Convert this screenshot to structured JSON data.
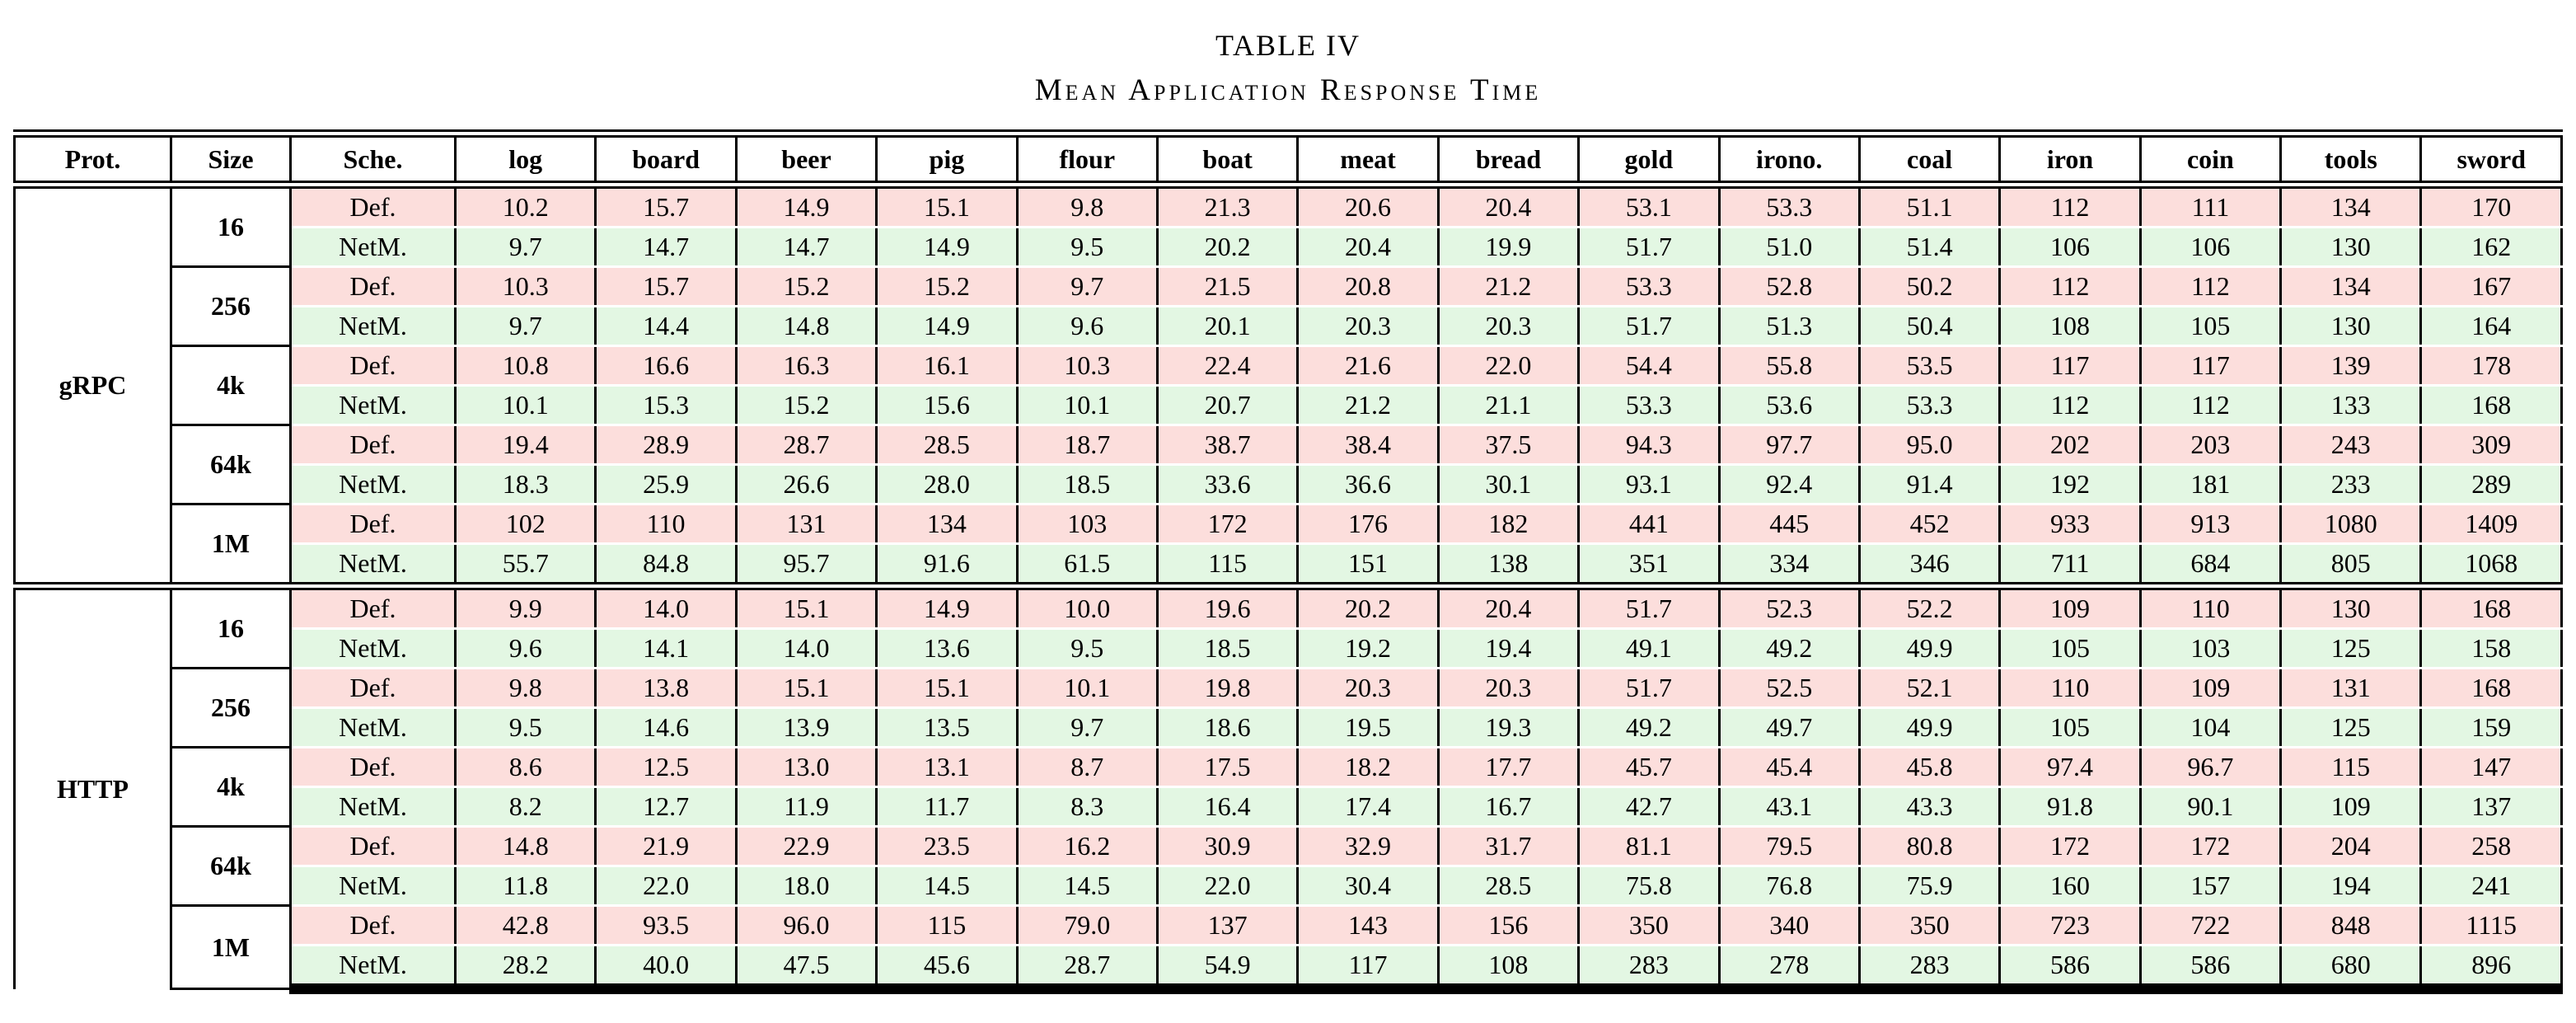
{
  "title": {
    "line1": "TABLE IV",
    "line2": "Mean Application Response Time"
  },
  "colors": {
    "def_row_bg": "#fcdedc",
    "netm_row_bg": "#e3f7e3",
    "grid_line": "#000000",
    "page_bg": "#ffffff"
  },
  "table": {
    "columns": [
      "Prot.",
      "Size",
      "Sche.",
      "log",
      "board",
      "beer",
      "pig",
      "flour",
      "boat",
      "meat",
      "bread",
      "gold",
      "irono.",
      "coal",
      "iron",
      "coin",
      "tools",
      "sword"
    ],
    "groups": [
      {
        "protocol": "gRPC",
        "sizes": [
          {
            "size": "16",
            "rows": [
              {
                "scheduler": "Def.",
                "values": [
                  "10.2",
                  "15.7",
                  "14.9",
                  "15.1",
                  "9.8",
                  "21.3",
                  "20.6",
                  "20.4",
                  "53.1",
                  "53.3",
                  "51.1",
                  "112",
                  "111",
                  "134",
                  "170"
                ]
              },
              {
                "scheduler": "NetM.",
                "values": [
                  "9.7",
                  "14.7",
                  "14.7",
                  "14.9",
                  "9.5",
                  "20.2",
                  "20.4",
                  "19.9",
                  "51.7",
                  "51.0",
                  "51.4",
                  "106",
                  "106",
                  "130",
                  "162"
                ]
              }
            ]
          },
          {
            "size": "256",
            "rows": [
              {
                "scheduler": "Def.",
                "values": [
                  "10.3",
                  "15.7",
                  "15.2",
                  "15.2",
                  "9.7",
                  "21.5",
                  "20.8",
                  "21.2",
                  "53.3",
                  "52.8",
                  "50.2",
                  "112",
                  "112",
                  "134",
                  "167"
                ]
              },
              {
                "scheduler": "NetM.",
                "values": [
                  "9.7",
                  "14.4",
                  "14.8",
                  "14.9",
                  "9.6",
                  "20.1",
                  "20.3",
                  "20.3",
                  "51.7",
                  "51.3",
                  "50.4",
                  "108",
                  "105",
                  "130",
                  "164"
                ]
              }
            ]
          },
          {
            "size": "4k",
            "rows": [
              {
                "scheduler": "Def.",
                "values": [
                  "10.8",
                  "16.6",
                  "16.3",
                  "16.1",
                  "10.3",
                  "22.4",
                  "21.6",
                  "22.0",
                  "54.4",
                  "55.8",
                  "53.5",
                  "117",
                  "117",
                  "139",
                  "178"
                ]
              },
              {
                "scheduler": "NetM.",
                "values": [
                  "10.1",
                  "15.3",
                  "15.2",
                  "15.6",
                  "10.1",
                  "20.7",
                  "21.2",
                  "21.1",
                  "53.3",
                  "53.6",
                  "53.3",
                  "112",
                  "112",
                  "133",
                  "168"
                ]
              }
            ]
          },
          {
            "size": "64k",
            "rows": [
              {
                "scheduler": "Def.",
                "values": [
                  "19.4",
                  "28.9",
                  "28.7",
                  "28.5",
                  "18.7",
                  "38.7",
                  "38.4",
                  "37.5",
                  "94.3",
                  "97.7",
                  "95.0",
                  "202",
                  "203",
                  "243",
                  "309"
                ]
              },
              {
                "scheduler": "NetM.",
                "values": [
                  "18.3",
                  "25.9",
                  "26.6",
                  "28.0",
                  "18.5",
                  "33.6",
                  "36.6",
                  "30.1",
                  "93.1",
                  "92.4",
                  "91.4",
                  "192",
                  "181",
                  "233",
                  "289"
                ]
              }
            ]
          },
          {
            "size": "1M",
            "rows": [
              {
                "scheduler": "Def.",
                "values": [
                  "102",
                  "110",
                  "131",
                  "134",
                  "103",
                  "172",
                  "176",
                  "182",
                  "441",
                  "445",
                  "452",
                  "933",
                  "913",
                  "1080",
                  "1409"
                ]
              },
              {
                "scheduler": "NetM.",
                "values": [
                  "55.7",
                  "84.8",
                  "95.7",
                  "91.6",
                  "61.5",
                  "115",
                  "151",
                  "138",
                  "351",
                  "334",
                  "346",
                  "711",
                  "684",
                  "805",
                  "1068"
                ]
              }
            ]
          }
        ]
      },
      {
        "protocol": "HTTP",
        "sizes": [
          {
            "size": "16",
            "rows": [
              {
                "scheduler": "Def.",
                "values": [
                  "9.9",
                  "14.0",
                  "15.1",
                  "14.9",
                  "10.0",
                  "19.6",
                  "20.2",
                  "20.4",
                  "51.7",
                  "52.3",
                  "52.2",
                  "109",
                  "110",
                  "130",
                  "168"
                ]
              },
              {
                "scheduler": "NetM.",
                "values": [
                  "9.6",
                  "14.1",
                  "14.0",
                  "13.6",
                  "9.5",
                  "18.5",
                  "19.2",
                  "19.4",
                  "49.1",
                  "49.2",
                  "49.9",
                  "105",
                  "103",
                  "125",
                  "158"
                ]
              }
            ]
          },
          {
            "size": "256",
            "rows": [
              {
                "scheduler": "Def.",
                "values": [
                  "9.8",
                  "13.8",
                  "15.1",
                  "15.1",
                  "10.1",
                  "19.8",
                  "20.3",
                  "20.3",
                  "51.7",
                  "52.5",
                  "52.1",
                  "110",
                  "109",
                  "131",
                  "168"
                ]
              },
              {
                "scheduler": "NetM.",
                "values": [
                  "9.5",
                  "14.6",
                  "13.9",
                  "13.5",
                  "9.7",
                  "18.6",
                  "19.5",
                  "19.3",
                  "49.2",
                  "49.7",
                  "49.9",
                  "105",
                  "104",
                  "125",
                  "159"
                ]
              }
            ]
          },
          {
            "size": "4k",
            "rows": [
              {
                "scheduler": "Def.",
                "values": [
                  "8.6",
                  "12.5",
                  "13.0",
                  "13.1",
                  "8.7",
                  "17.5",
                  "18.2",
                  "17.7",
                  "45.7",
                  "45.4",
                  "45.8",
                  "97.4",
                  "96.7",
                  "115",
                  "147"
                ]
              },
              {
                "scheduler": "NetM.",
                "values": [
                  "8.2",
                  "12.7",
                  "11.9",
                  "11.7",
                  "8.3",
                  "16.4",
                  "17.4",
                  "16.7",
                  "42.7",
                  "43.1",
                  "43.3",
                  "91.8",
                  "90.1",
                  "109",
                  "137"
                ]
              }
            ]
          },
          {
            "size": "64k",
            "rows": [
              {
                "scheduler": "Def.",
                "values": [
                  "14.8",
                  "21.9",
                  "22.9",
                  "23.5",
                  "16.2",
                  "30.9",
                  "32.9",
                  "31.7",
                  "81.1",
                  "79.5",
                  "80.8",
                  "172",
                  "172",
                  "204",
                  "258"
                ]
              },
              {
                "scheduler": "NetM.",
                "values": [
                  "11.8",
                  "22.0",
                  "18.0",
                  "14.5",
                  "14.5",
                  "22.0",
                  "30.4",
                  "28.5",
                  "75.8",
                  "76.8",
                  "75.9",
                  "160",
                  "157",
                  "194",
                  "241"
                ]
              }
            ]
          },
          {
            "size": "1M",
            "rows": [
              {
                "scheduler": "Def.",
                "values": [
                  "42.8",
                  "93.5",
                  "96.0",
                  "115",
                  "79.0",
                  "137",
                  "143",
                  "156",
                  "350",
                  "340",
                  "350",
                  "723",
                  "722",
                  "848",
                  "1115"
                ]
              },
              {
                "scheduler": "NetM.",
                "values": [
                  "28.2",
                  "40.0",
                  "47.5",
                  "45.6",
                  "28.7",
                  "54.9",
                  "117",
                  "108",
                  "283",
                  "278",
                  "283",
                  "586",
                  "586",
                  "680",
                  "896"
                ]
              }
            ]
          }
        ]
      }
    ]
  }
}
